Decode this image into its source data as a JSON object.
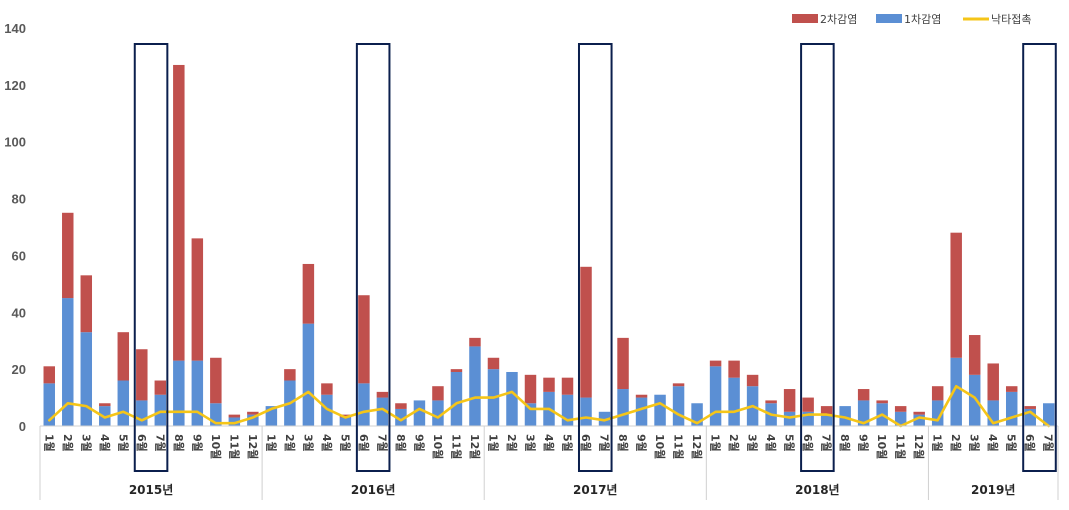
{
  "chart_data": {
    "type": "bar",
    "stacked": true,
    "title": "",
    "xlabel": "",
    "ylabel": "",
    "ylim": [
      0,
      140
    ],
    "yticks": [
      0,
      20,
      40,
      60,
      80,
      100,
      120,
      140
    ],
    "legend_position": "top-right",
    "colors": {
      "primary": "#5b8fd4",
      "secondary": "#c0504d",
      "fall": "#f5c518",
      "highlight": "#0b1f4d",
      "axis": "#d0d0d0"
    },
    "legend": [
      {
        "key": "secondary",
        "label": "2차감염"
      },
      {
        "key": "primary",
        "label": "1차감염"
      },
      {
        "key": "fall",
        "label": "낙타접촉"
      }
    ],
    "years": [
      {
        "label": "2015년",
        "months": [
          "1월",
          "2월",
          "3월",
          "4월",
          "5월",
          "6월",
          "7월",
          "8월",
          "9월",
          "10월",
          "11월",
          "12월"
        ]
      },
      {
        "label": "2016년",
        "months": [
          "1월",
          "2월",
          "3월",
          "4월",
          "5월",
          "6월",
          "7월",
          "8월",
          "9월",
          "10월",
          "11월",
          "12월"
        ]
      },
      {
        "label": "2017년",
        "months": [
          "1월",
          "2월",
          "3월",
          "4월",
          "5월",
          "6월",
          "7월",
          "8월",
          "9월",
          "10월",
          "11월",
          "12월"
        ]
      },
      {
        "label": "2018년",
        "months": [
          "1월",
          "2월",
          "3월",
          "4월",
          "5월",
          "6월",
          "7월",
          "8월",
          "9월",
          "10월",
          "11월",
          "12월"
        ]
      },
      {
        "label": "2019년",
        "months": [
          "1월",
          "2월",
          "3월",
          "4월",
          "5월",
          "6월",
          "7월"
        ]
      }
    ],
    "series": [
      {
        "key": "primary",
        "name": "1차감염",
        "values": [
          15,
          45,
          33,
          7,
          16,
          9,
          11,
          23,
          23,
          8,
          3,
          4,
          7,
          16,
          36,
          11,
          3,
          15,
          10,
          6,
          9,
          9,
          19,
          28,
          20,
          19,
          8,
          12,
          11,
          10,
          5,
          13,
          10,
          11,
          14,
          8,
          21,
          17,
          14,
          8,
          5,
          5,
          4,
          7,
          9,
          8,
          5,
          4,
          9,
          24,
          18,
          9,
          12,
          6,
          8
        ]
      },
      {
        "key": "secondary",
        "name": "2차감염",
        "values": [
          6,
          30,
          20,
          1,
          17,
          18,
          5,
          104,
          43,
          16,
          1,
          1,
          0,
          4,
          21,
          4,
          1,
          31,
          2,
          2,
          0,
          5,
          1,
          3,
          4,
          0,
          10,
          5,
          6,
          46,
          0,
          18,
          1,
          0,
          1,
          0,
          2,
          6,
          4,
          1,
          8,
          5,
          3,
          0,
          4,
          1,
          2,
          1,
          5,
          44,
          14,
          13,
          2,
          1,
          0
        ]
      },
      {
        "key": "fall",
        "name": "낙타접촉",
        "values": [
          2,
          8,
          7,
          3,
          5,
          2,
          5,
          5,
          5,
          1,
          1,
          3,
          6,
          8,
          12,
          6,
          3,
          5,
          6,
          2,
          6,
          3,
          8,
          10,
          10,
          12,
          6,
          6,
          2,
          3,
          2,
          4,
          6,
          8,
          4,
          1,
          5,
          5,
          7,
          4,
          3,
          4,
          4,
          3,
          1,
          4,
          0,
          3,
          2,
          14,
          10,
          1,
          3,
          5,
          0
        ]
      }
    ],
    "highlighted_months": [
      {
        "year": 0,
        "month": 5
      },
      {
        "year": 0,
        "month": 6
      },
      {
        "year": 1,
        "month": 5
      },
      {
        "year": 1,
        "month": 6
      },
      {
        "year": 2,
        "month": 5
      },
      {
        "year": 2,
        "month": 6
      },
      {
        "year": 3,
        "month": 5
      },
      {
        "year": 3,
        "month": 6
      },
      {
        "year": 4,
        "month": 5
      },
      {
        "year": 4,
        "month": 6
      }
    ]
  }
}
